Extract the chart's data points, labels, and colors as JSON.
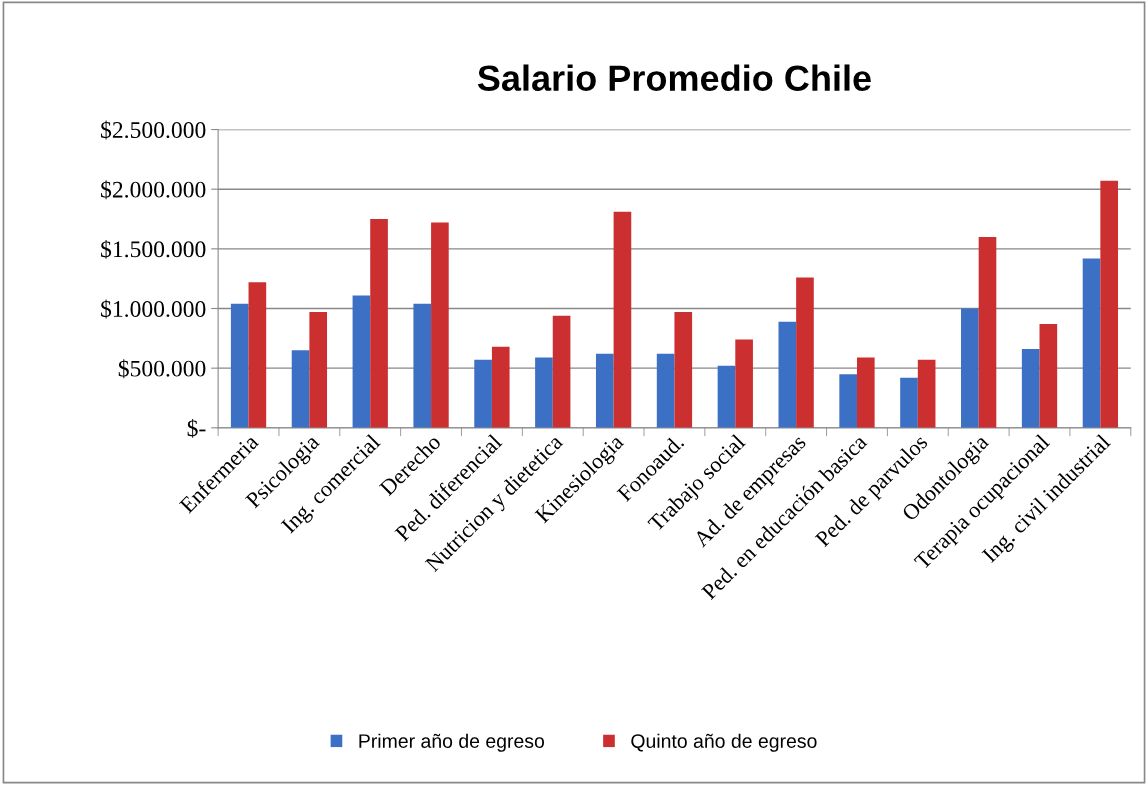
{
  "chart_data": {
    "type": "bar",
    "title": "Salario Promedio Chile",
    "categories": [
      "Enfermeria",
      "Psicologia",
      "Ing. comercial",
      "Derecho",
      "Ped. diferencial",
      "Nutricion y dietetica",
      "Kinesiologia",
      "Fonoaud.",
      "Trabajo social",
      "Ad. de empresas",
      "Ped. en educación basica",
      "Ped. de parvulos",
      "Odontologia",
      "Terapia ocupacional",
      "Ing. civil industrial"
    ],
    "series": [
      {
        "name": "Primer año de egreso",
        "color": "#3b70c4",
        "values": [
          1040000,
          650000,
          1110000,
          1040000,
          570000,
          590000,
          620000,
          620000,
          520000,
          890000,
          450000,
          420000,
          1000000,
          660000,
          1420000
        ]
      },
      {
        "name": "Quinto año de egreso",
        "color": "#cc2f2f",
        "values": [
          1220000,
          970000,
          1750000,
          1720000,
          680000,
          940000,
          1810000,
          970000,
          740000,
          1260000,
          590000,
          570000,
          1600000,
          870000,
          2070000
        ]
      }
    ],
    "ylim": [
      0,
      2500000
    ],
    "yticks": [
      {
        "value": 0,
        "label": "$-"
      },
      {
        "value": 500000,
        "label": "$500.000"
      },
      {
        "value": 1000000,
        "label": "$1.000.000"
      },
      {
        "value": 1500000,
        "label": "$1.500.000"
      },
      {
        "value": 2000000,
        "label": "$2.000.000"
      },
      {
        "value": 2500000,
        "label": "$2.500.000"
      }
    ],
    "grid": "y",
    "legend": "bottom"
  }
}
